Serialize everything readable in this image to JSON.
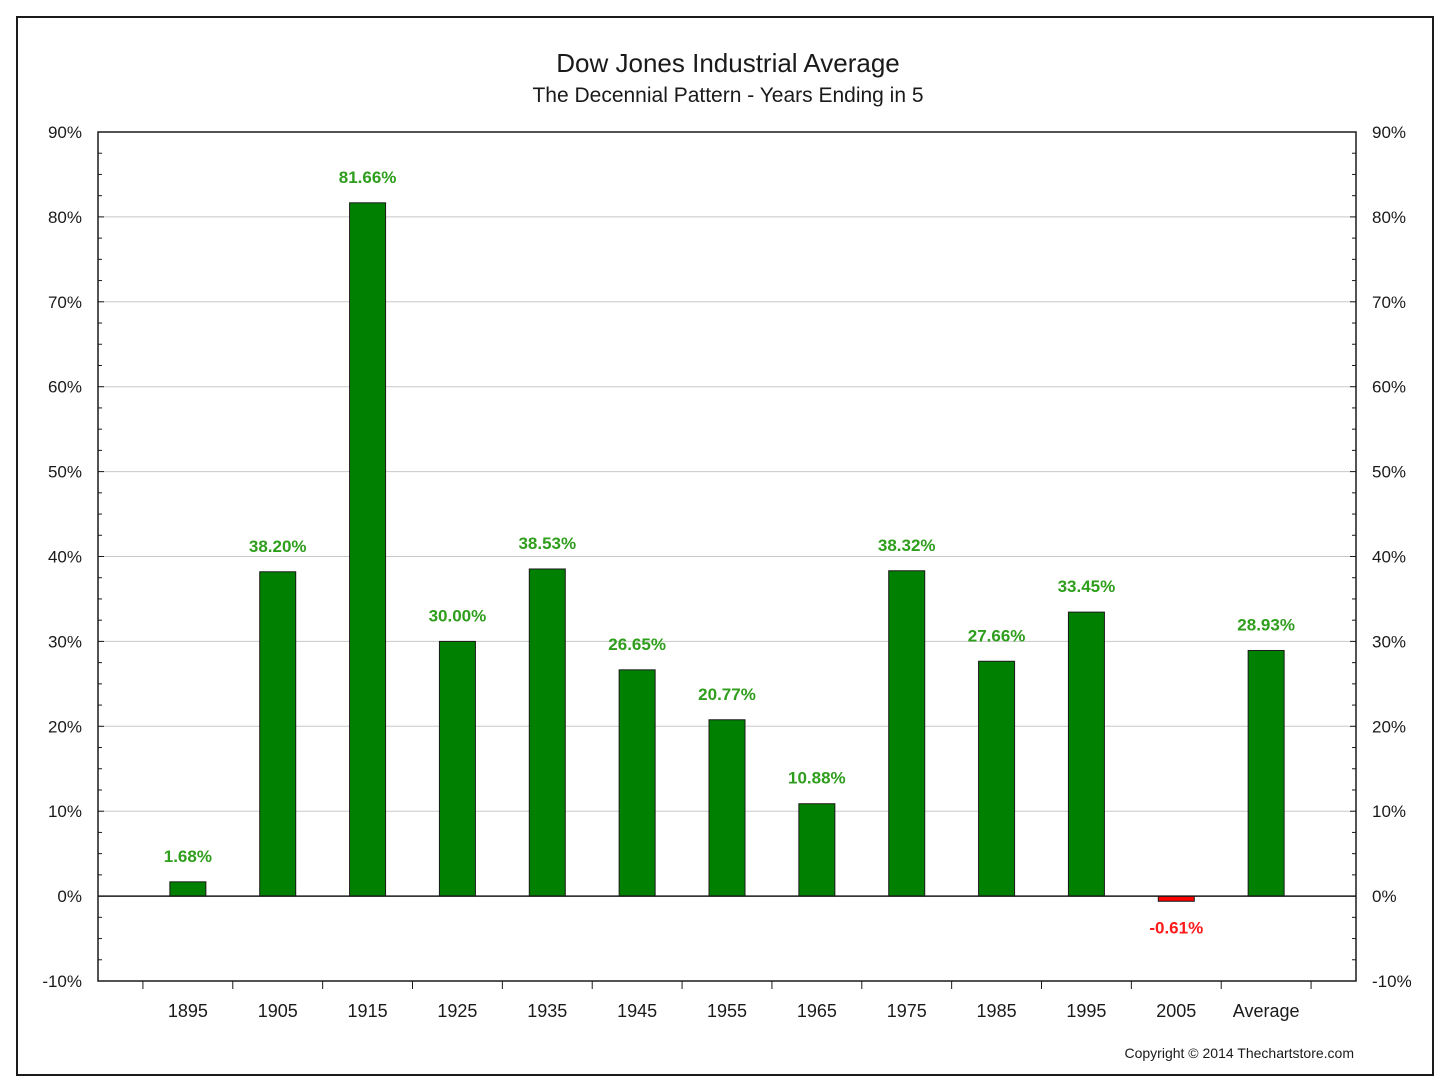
{
  "chart_data": {
    "type": "bar",
    "title": "Dow Jones Industrial Average",
    "subtitle": "The Decennial Pattern - Years Ending in 5",
    "categories": [
      "1895",
      "1905",
      "1915",
      "1925",
      "1935",
      "1945",
      "1955",
      "1965",
      "1975",
      "1985",
      "1995",
      "2005",
      "Average"
    ],
    "values": [
      1.68,
      38.2,
      81.66,
      30.0,
      38.53,
      26.65,
      20.77,
      10.88,
      38.32,
      27.66,
      33.45,
      -0.61,
      28.93
    ],
    "value_labels": [
      "1.68%",
      "38.20%",
      "81.66%",
      "30.00%",
      "38.53%",
      "26.65%",
      "20.77%",
      "10.88%",
      "38.32%",
      "27.66%",
      "33.45%",
      "-0.61%",
      "28.93%"
    ],
    "ylim": [
      -10,
      90
    ],
    "y_ticks": [
      90,
      80,
      70,
      60,
      50,
      40,
      30,
      20,
      10,
      0,
      -10
    ],
    "y_tick_labels": [
      "90%",
      "80%",
      "70%",
      "60%",
      "50%",
      "40%",
      "30%",
      "20%",
      "10%",
      "0%",
      "-10%"
    ],
    "y_axis_sides": "left and right",
    "grid": true,
    "colors": {
      "positive": "#008000",
      "negative": "#ff0000",
      "positive_label": "#2e9e1c",
      "negative_label": "#ff1a1a",
      "grid": "#c8c8c8"
    },
    "copyright": "Copyright © 2014 Thechartstore.com"
  }
}
